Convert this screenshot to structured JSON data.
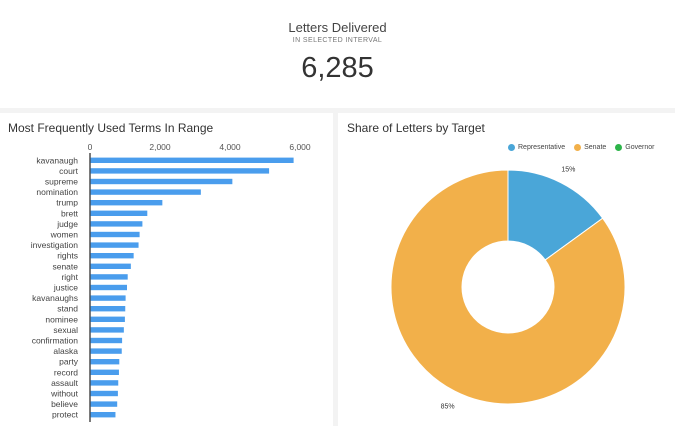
{
  "kpi": {
    "title": "Letters Delivered",
    "subtitle": "IN SELECTED INTERVAL",
    "value": "6,285"
  },
  "colors": {
    "bar": "#4a9ded",
    "representative": "#4aa6d8",
    "senate": "#f2b04a",
    "governor": "#2db44a"
  },
  "chart_data": [
    {
      "type": "bar",
      "orientation": "horizontal",
      "title": "Most Frequently Used Terms In Range",
      "xlim": [
        0,
        6000
      ],
      "xticks": [
        0,
        2000,
        4000,
        6000
      ],
      "xtick_labels": [
        "0",
        "2,000",
        "4,000",
        "6,000"
      ],
      "categories": [
        "kavanaugh",
        "court",
        "supreme",
        "nomination",
        "trump",
        "brett",
        "judge",
        "women",
        "investigation",
        "rights",
        "senate",
        "right",
        "justice",
        "kavanaughs",
        "stand",
        "nominee",
        "sexual",
        "confirmation",
        "alaska",
        "party",
        "record",
        "assault",
        "without",
        "believe",
        "protect"
      ],
      "values": [
        5800,
        5100,
        4050,
        3150,
        2050,
        1620,
        1480,
        1400,
        1370,
        1230,
        1150,
        1060,
        1040,
        1000,
        990,
        980,
        950,
        900,
        890,
        820,
        810,
        790,
        780,
        760,
        710
      ]
    },
    {
      "type": "pie",
      "style": "donut",
      "title": "Share of Letters by Target",
      "legend_position": "top",
      "labels": [
        "Representative",
        "Senate",
        "Governor"
      ],
      "values": [
        15,
        85,
        0
      ],
      "value_labels": [
        "15%",
        "85%",
        ""
      ]
    }
  ]
}
